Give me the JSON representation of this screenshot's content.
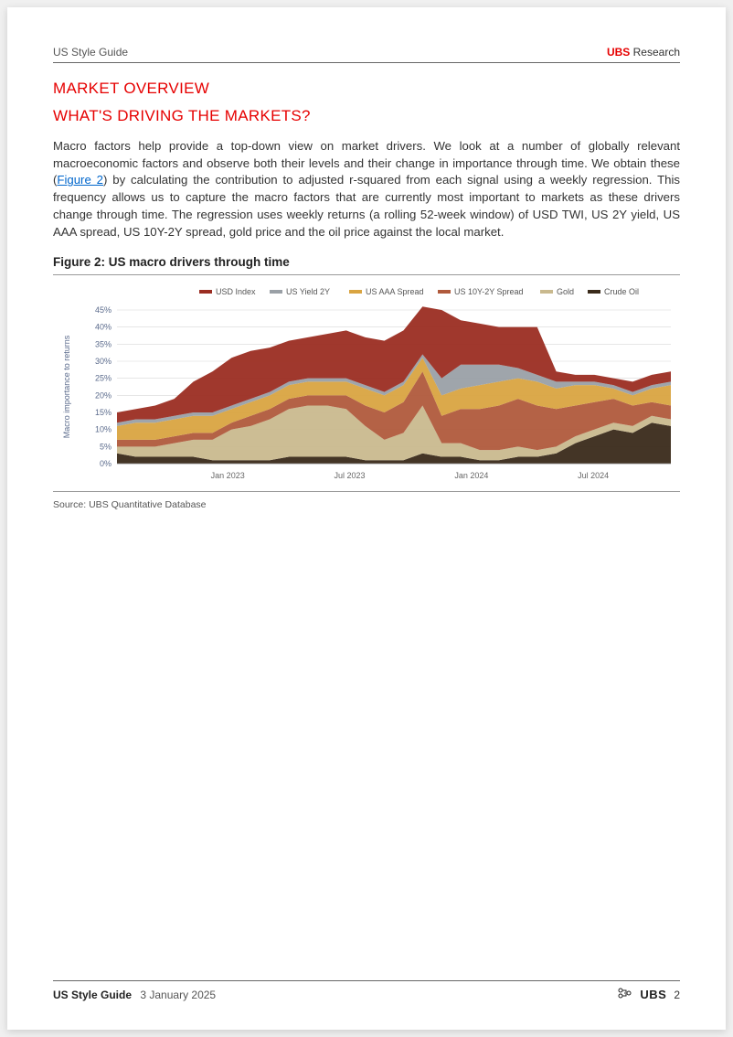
{
  "header": {
    "left": "US Style Guide",
    "brand": "UBS",
    "rest": " Research"
  },
  "section_title": "MARKET OVERVIEW",
  "subsection_title": "WHAT'S DRIVING THE MARKETS?",
  "body_pre": "Macro factors help provide a top-down view on market drivers. We look at a number of globally relevant macroeconomic factors and observe both their levels and their change in importance through time. We obtain these (",
  "fig_link": "Figure 2",
  "body_post": ") by calculating the contribution to adjusted r-squared from each signal using a weekly regression. This frequency allows us to capture the macro factors that are currently most important to markets as these drivers change through time. The regression uses weekly returns (a rolling 52-week window) of USD TWI, US 2Y yield, US AAA spread, US 10Y-2Y spread, gold price and the oil price against the local market.",
  "figure": {
    "title": "Figure 2: US macro drivers through time",
    "source": "Source: UBS Quantitative Database",
    "type": "stacked-area",
    "ylabel": "Macro importance to returns",
    "ylabel_fontsize": 9,
    "yaxis": {
      "min": 0,
      "max": 45,
      "step": 5,
      "format_suffix": "%",
      "tick_fontsize": 9,
      "tick_color": "#5b6b8c"
    },
    "xaxis": {
      "labels": [
        "Jan 2023",
        "Jul 2023",
        "Jan 2024",
        "Jul 2024"
      ],
      "positions": [
        0.2,
        0.42,
        0.64,
        0.86
      ],
      "tick_fontsize": 9,
      "tick_color": "#666"
    },
    "legend": {
      "items": [
        {
          "label": "USD Index",
          "color": "#9b2d22"
        },
        {
          "label": "US Yield 2Y",
          "color": "#9aa0a6"
        },
        {
          "label": "US AAA Spread",
          "color": "#d9a441"
        },
        {
          "label": "US 10Y-2Y Spread",
          "color": "#b05a3c"
        },
        {
          "label": "Gold",
          "color": "#c9b98e"
        },
        {
          "label": "Crude Oil",
          "color": "#3a2a1a"
        }
      ],
      "fontsize": 9
    },
    "grid_color": "#d8d8d8",
    "background_color": "#ffffff",
    "series_order_bottom_to_top": [
      "Crude Oil",
      "Gold",
      "US 10Y-2Y Spread",
      "US AAA Spread",
      "US Yield 2Y",
      "USD Index"
    ],
    "n_points": 30,
    "series": {
      "Crude Oil": [
        3,
        2,
        2,
        2,
        2,
        1,
        1,
        1,
        1,
        2,
        2,
        2,
        2,
        1,
        1,
        1,
        3,
        2,
        2,
        1,
        1,
        2,
        2,
        3,
        6,
        8,
        10,
        9,
        12,
        11
      ],
      "Gold": [
        2,
        3,
        3,
        4,
        5,
        6,
        9,
        10,
        12,
        14,
        15,
        15,
        14,
        10,
        6,
        8,
        14,
        4,
        4,
        3,
        3,
        3,
        2,
        2,
        2,
        2,
        2,
        2,
        2,
        2
      ],
      "US 10Y-2Y Spread": [
        2,
        2,
        2,
        2,
        2,
        2,
        2,
        3,
        3,
        3,
        3,
        3,
        4,
        6,
        8,
        9,
        10,
        8,
        10,
        12,
        13,
        14,
        13,
        11,
        9,
        8,
        7,
        6,
        4,
        4
      ],
      "US AAA Spread": [
        4,
        5,
        5,
        5,
        5,
        5,
        4,
        4,
        4,
        4,
        4,
        4,
        4,
        5,
        5,
        5,
        4,
        6,
        6,
        7,
        7,
        6,
        7,
        6,
        6,
        5,
        3,
        3,
        4,
        6
      ],
      "US Yield 2Y": [
        1,
        1,
        1,
        1,
        1,
        1,
        1,
        1,
        1,
        1,
        1,
        1,
        1,
        1,
        1,
        1,
        1,
        5,
        7,
        6,
        5,
        3,
        2,
        2,
        1,
        1,
        1,
        1,
        1,
        1
      ],
      "USD Index": [
        3,
        3,
        4,
        5,
        9,
        12,
        14,
        14,
        13,
        12,
        12,
        13,
        14,
        14,
        15,
        15,
        14,
        20,
        13,
        12,
        11,
        12,
        14,
        3,
        2,
        2,
        2,
        3,
        3,
        3
      ]
    }
  },
  "footer": {
    "title": "US Style Guide",
    "date": "3 January 2025",
    "brand": "UBS",
    "page": "2"
  },
  "colors": {
    "accent": "#e60000",
    "text": "#333333",
    "rule": "#666666",
    "link": "#0066cc"
  }
}
